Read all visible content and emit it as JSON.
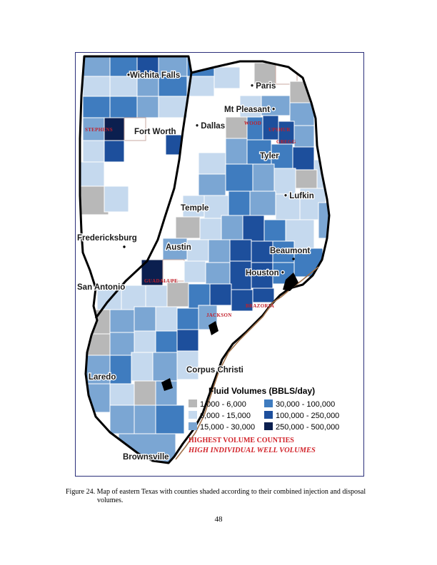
{
  "figure": {
    "cities": [
      {
        "id": "wichita-falls",
        "label": "•Wichita Falls"
      },
      {
        "id": "paris",
        "label": "• Paris"
      },
      {
        "id": "mt-pleasant",
        "label": "Mt Pleasant •"
      },
      {
        "id": "dallas",
        "label": "• Dallas"
      },
      {
        "id": "fort-worth",
        "label": "Fort Worth"
      },
      {
        "id": "tyler",
        "label": "Tyler"
      },
      {
        "id": "lufkin",
        "label": "• Lufkin"
      },
      {
        "id": "temple",
        "label": "Temple"
      },
      {
        "id": "fredericksburg",
        "label": "Fredericksburg"
      },
      {
        "id": "austin",
        "label": "Austin"
      },
      {
        "id": "beaumont",
        "label": "Beaumont"
      },
      {
        "id": "houston",
        "label": "Houston •"
      },
      {
        "id": "san-antonio",
        "label": "San Antonio"
      },
      {
        "id": "corpus-christi",
        "label": "Corpus Christi"
      },
      {
        "id": "laredo",
        "label": "Laredo"
      },
      {
        "id": "brownsville",
        "label": "Brownsville"
      }
    ],
    "highlighted_counties": [
      "STEPHENS",
      "WOOD",
      "UPSHUR",
      "GREGG",
      "GUADALUPE",
      "JACKSON",
      "BRAZORIA"
    ],
    "legend": {
      "title": "Fluid Volumes (BBLS/day)",
      "items": [
        {
          "label": "1,000 - 6,000",
          "color": "#b8b8b8"
        },
        {
          "label": "6,000 - 15,000",
          "color": "#c5d9ee"
        },
        {
          "label": "15,000 - 30,000",
          "color": "#7ba6d3"
        },
        {
          "label": "30,000 - 100,000",
          "color": "#3f7cbf"
        },
        {
          "label": "100,000 - 250,000",
          "color": "#1d4f9c"
        },
        {
          "label": "250,000 - 500,000",
          "color": "#0b1f4f"
        }
      ],
      "note_highest": "HIGHEST VOLUME COUNTIES",
      "note_high_well": "HIGH INDIVIDUAL WELL VOLUMES"
    }
  },
  "caption": {
    "line1": "Figure 24.  Map of eastern Texas with counties shaded according to their combined injection and disposal",
    "line2": "volumes."
  },
  "page_number": "48"
}
